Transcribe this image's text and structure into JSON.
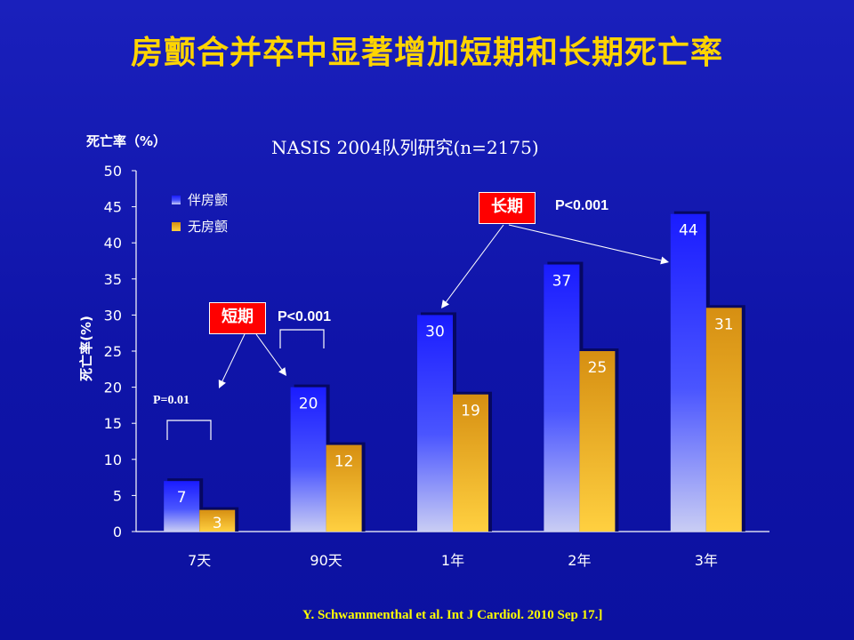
{
  "title": "房颤合并卒中显著增加短期和长期死亡率",
  "subtitle": "NASIS 2004队列研究(n=2175)",
  "citation": "Y. Schwammenthal et al. Int J Cardiol. 2010 Sep 17.]",
  "annotations": {
    "short_term_label": "短期",
    "short_term_p": "P<0.001",
    "long_term_label": "长期",
    "long_term_p": "P<0.001",
    "seven_day_p": "P=0.01"
  },
  "chart_data": {
    "type": "bar",
    "ylabel_top": "死亡率（%）",
    "ylabel_side": "死亡率(%)",
    "ylim": [
      0,
      50
    ],
    "yticks": [
      0,
      5,
      10,
      15,
      20,
      25,
      30,
      35,
      40,
      45,
      50
    ],
    "categories": [
      "7天",
      "90天",
      "1年",
      "2年",
      "3年"
    ],
    "series": [
      {
        "name": "伴房颤",
        "color": "#2a2cff",
        "values": [
          7,
          20,
          30,
          37,
          44
        ]
      },
      {
        "name": "无房颤",
        "color": "#e8a21a",
        "values": [
          3,
          12,
          19,
          25,
          31
        ]
      }
    ],
    "legend": "top-left"
  }
}
